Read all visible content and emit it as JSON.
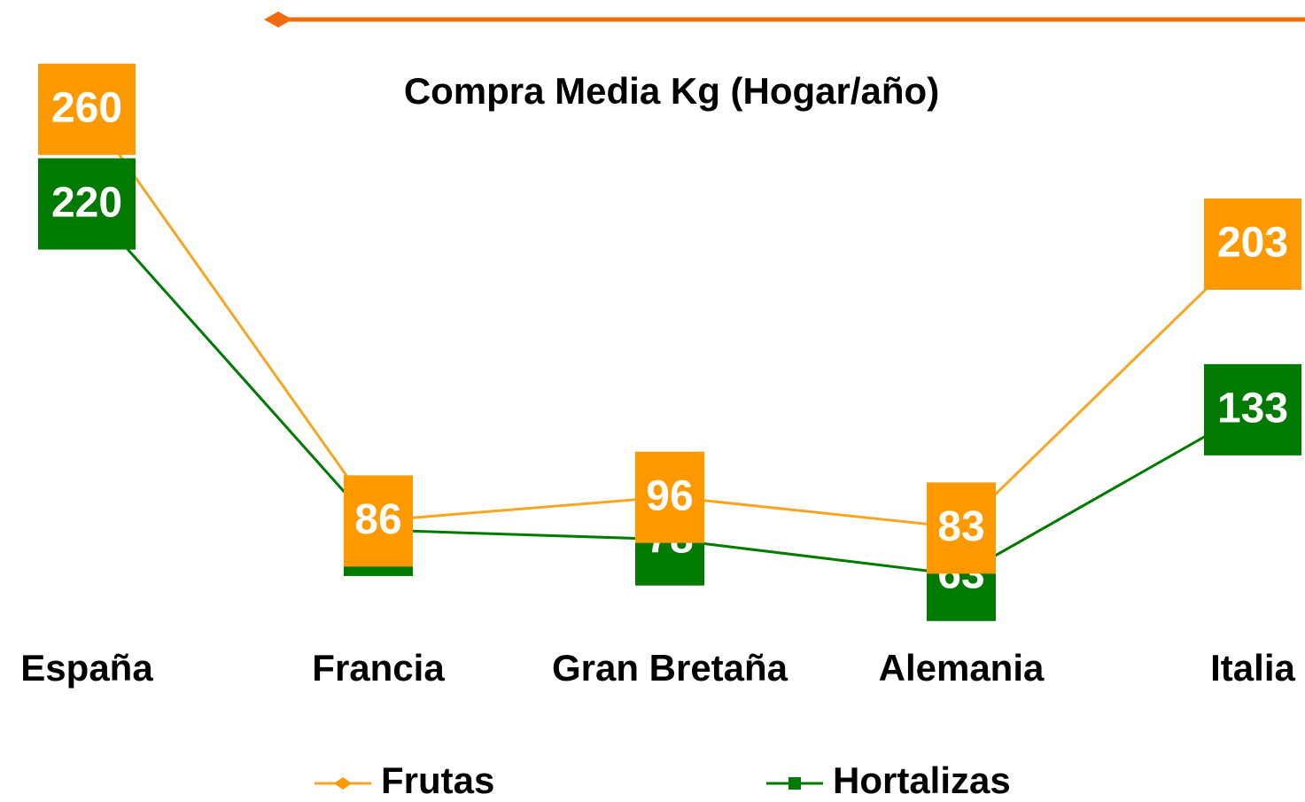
{
  "chart_data": {
    "type": "line",
    "title": "Compra Media Kg (Hogar/año)",
    "categories": [
      "España",
      "Francia",
      "Gran Bretaña",
      "Alemania",
      "Italia"
    ],
    "series": [
      {
        "name": "Frutas",
        "color": "#ff9900",
        "values": [
          260,
          86,
          96,
          83,
          203
        ]
      },
      {
        "name": "Hortalizas",
        "color": "#007a00",
        "values": [
          220,
          82,
          78,
          63,
          133
        ]
      }
    ],
    "ylim": [
      0,
      300
    ],
    "legend": "bottom"
  }
}
